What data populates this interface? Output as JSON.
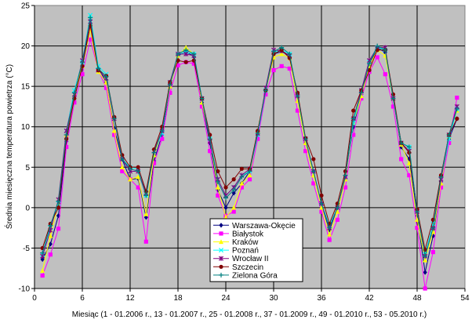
{
  "chart_data": {
    "type": "line",
    "xlabel": "Miesiąc (1 - 01.2006 r., 13 - 01.2007 r., 25 - 01.2008 r., 37 - 01.2009 r., 49 - 01.2010 r., 53 - 05.2010 r.)",
    "ylabel": "Średnia miesięczna temperatura powietrza (°C)",
    "xlim": [
      0,
      54
    ],
    "ylim": [
      -10,
      25
    ],
    "x_ticks": [
      0,
      6,
      12,
      18,
      24,
      30,
      36,
      42,
      48,
      54
    ],
    "y_ticks": [
      -10,
      -5,
      0,
      5,
      10,
      15,
      20,
      25
    ],
    "grid": "both",
    "legend_position": "bottom-center",
    "x": [
      1,
      2,
      3,
      4,
      5,
      6,
      7,
      8,
      9,
      10,
      11,
      12,
      13,
      14,
      15,
      16,
      17,
      18,
      19,
      20,
      21,
      22,
      23,
      24,
      25,
      26,
      27,
      28,
      29,
      30,
      31,
      32,
      33,
      34,
      35,
      36,
      37,
      38,
      39,
      40,
      41,
      42,
      43,
      44,
      45,
      46,
      47,
      48,
      49,
      50,
      51,
      52,
      53
    ],
    "series": [
      {
        "name": "Warszawa-Okęcie",
        "color": "#000080",
        "marker": "diamond",
        "values": [
          -6.4,
          -4.5,
          -1.0,
          8.2,
          13.8,
          17.5,
          23.2,
          17.3,
          15.5,
          9.8,
          6.0,
          3.5,
          3.6,
          -1.2,
          5.8,
          9.0,
          15.0,
          18.8,
          19.3,
          18.7,
          13.0,
          8.0,
          2.2,
          0.0,
          1.8,
          3.0,
          4.5,
          9.0,
          14.5,
          19.0,
          19.3,
          18.8,
          14.0,
          8.0,
          4.5,
          0.5,
          -2.8,
          0.0,
          3.8,
          10.0,
          14.0,
          17.5,
          19.8,
          19.2,
          13.5,
          7.5,
          6.0,
          -1.0,
          -8.0,
          -3.5,
          3.2,
          8.5,
          11.0
        ]
      },
      {
        "name": "Białystok",
        "color": "#FF00FF",
        "marker": "square",
        "values": [
          -8.4,
          -5.8,
          -2.6,
          7.5,
          13.0,
          16.5,
          20.8,
          17.0,
          14.8,
          9.0,
          4.5,
          3.5,
          2.5,
          -4.2,
          5.5,
          8.5,
          14.2,
          17.6,
          18.0,
          17.8,
          12.5,
          7.0,
          1.5,
          -1.0,
          -0.5,
          2.5,
          3.5,
          8.5,
          14.0,
          17.0,
          17.5,
          17.2,
          12.0,
          7.0,
          3.0,
          -0.5,
          -4.0,
          -1.5,
          2.5,
          9.0,
          13.5,
          16.8,
          18.6,
          16.5,
          12.5,
          6.0,
          4.0,
          -2.5,
          -10.0,
          -5.5,
          2.5,
          8.0,
          13.6
        ]
      },
      {
        "name": "Kraków",
        "color": "#FFFF00",
        "marker": "triangle",
        "values": [
          -7.8,
          -3.5,
          0.5,
          9.0,
          14.0,
          17.5,
          22.0,
          16.8,
          15.5,
          9.5,
          5.0,
          3.5,
          3.8,
          -0.8,
          6.5,
          9.5,
          15.0,
          18.8,
          19.8,
          19.0,
          13.0,
          8.5,
          2.5,
          -1.2,
          0.0,
          3.0,
          4.0,
          9.5,
          14.5,
          18.6,
          19.0,
          18.5,
          13.2,
          8.0,
          4.0,
          0.0,
          -3.3,
          -0.5,
          3.5,
          10.5,
          13.8,
          17.5,
          19.5,
          18.8,
          13.5,
          7.8,
          5.5,
          -1.5,
          -6.5,
          -3.0,
          3.0,
          8.8,
          12.0
        ]
      },
      {
        "name": "Poznań",
        "color": "#00FFFF",
        "marker": "x",
        "values": [
          -5.8,
          -2.5,
          0.5,
          9.5,
          14.5,
          18.0,
          23.8,
          17.5,
          16.5,
          11.0,
          6.0,
          5.0,
          4.8,
          1.5,
          7.0,
          9.2,
          15.5,
          19.0,
          19.2,
          19.0,
          13.5,
          8.5,
          3.5,
          1.5,
          2.5,
          4.0,
          4.5,
          9.0,
          14.5,
          19.2,
          19.5,
          19.0,
          13.8,
          8.5,
          4.5,
          0.5,
          -2.2,
          0.0,
          3.8,
          10.5,
          14.5,
          18.0,
          19.8,
          19.5,
          13.5,
          8.0,
          7.5,
          -0.5,
          -5.8,
          -2.0,
          3.5,
          8.5,
          12.2
        ]
      },
      {
        "name": "Wrocław II",
        "color": "#800080",
        "marker": "star",
        "values": [
          -6.0,
          -2.8,
          1.0,
          9.5,
          14.0,
          18.2,
          23.0,
          17.0,
          16.0,
          11.0,
          6.0,
          4.5,
          4.5,
          1.8,
          7.0,
          9.5,
          15.5,
          19.0,
          19.0,
          18.8,
          13.5,
          8.2,
          3.5,
          1.5,
          2.5,
          4.0,
          4.8,
          9.2,
          14.8,
          19.5,
          19.4,
          18.8,
          13.8,
          8.5,
          4.5,
          0.5,
          -2.5,
          0.0,
          3.8,
          11.0,
          14.5,
          18.2,
          19.8,
          19.8,
          13.5,
          8.0,
          7.0,
          -0.5,
          -6.0,
          -2.5,
          3.5,
          9.0,
          12.5
        ]
      },
      {
        "name": "Szczecin",
        "color": "#800000",
        "marker": "circle",
        "values": [
          -5.0,
          -2.0,
          0.0,
          8.5,
          13.5,
          17.5,
          22.5,
          17.0,
          16.3,
          11.2,
          6.5,
          5.0,
          5.0,
          2.0,
          7.2,
          10.0,
          15.5,
          18.2,
          18.0,
          18.2,
          13.5,
          9.0,
          4.5,
          2.5,
          3.5,
          4.8,
          4.8,
          9.5,
          14.5,
          19.0,
          19.5,
          18.5,
          14.2,
          8.6,
          6.0,
          1.5,
          -2.0,
          0.5,
          4.5,
          12.0,
          14.5,
          17.0,
          19.5,
          19.5,
          14.0,
          8.0,
          6.8,
          -0.2,
          -5.2,
          -1.5,
          4.0,
          9.0,
          11.0
        ]
      },
      {
        "name": "Zielona Góra",
        "color": "#008080",
        "marker": "plus",
        "values": [
          -5.6,
          -2.2,
          0.8,
          9.0,
          14.2,
          18.0,
          23.5,
          17.2,
          16.2,
          11.0,
          6.0,
          4.8,
          4.5,
          1.5,
          6.8,
          9.5,
          15.2,
          19.0,
          19.5,
          19.0,
          13.5,
          8.5,
          3.2,
          1.2,
          2.2,
          3.8,
          4.5,
          9.2,
          14.5,
          19.3,
          19.8,
          19.0,
          13.8,
          8.5,
          4.5,
          0.5,
          -2.5,
          0.0,
          4.0,
          11.0,
          14.2,
          17.8,
          20.0,
          19.5,
          13.5,
          8.0,
          7.5,
          -0.5,
          -6.0,
          -2.5,
          3.8,
          9.0,
          12.2
        ]
      }
    ]
  }
}
